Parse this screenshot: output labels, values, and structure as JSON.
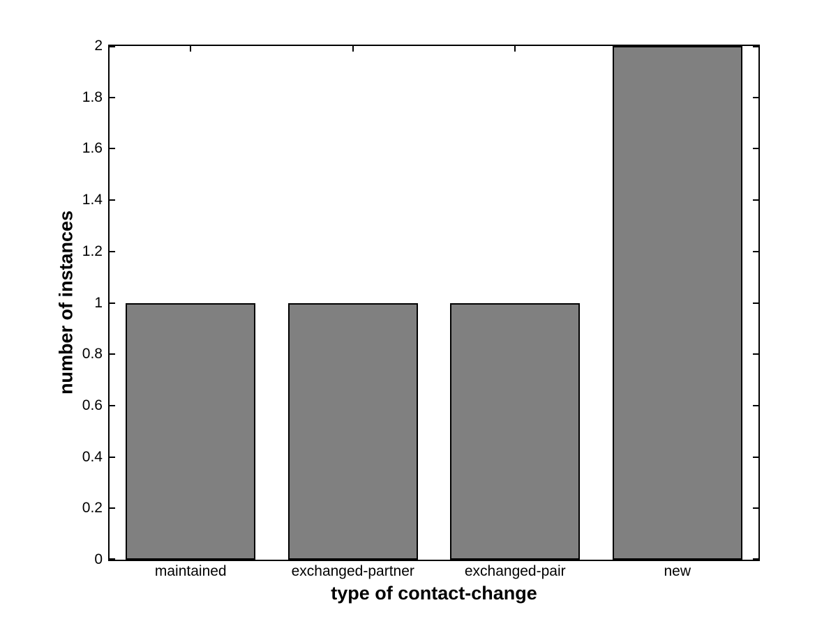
{
  "figure": {
    "background": "#ffffff",
    "axis_color": "#000000",
    "text_color": "#000000"
  },
  "chart_data": {
    "type": "bar",
    "title": "",
    "categories": [
      "maintained",
      "exchanged-partner",
      "exchanged-pair",
      "new"
    ],
    "values": [
      1,
      1,
      1,
      2
    ],
    "xlabel": "type of contact-change",
    "ylabel": "number of instances",
    "ylim": [
      0,
      2
    ],
    "yticks": [
      0,
      0.2,
      0.4,
      0.6,
      0.8,
      1,
      1.2,
      1.4,
      1.6,
      1.8,
      2
    ],
    "ytick_labels": [
      "0",
      "0.2",
      "0.4",
      "0.6",
      "0.8",
      "1",
      "1.2",
      "1.4",
      "1.6",
      "1.8",
      "2"
    ],
    "bar_color": "#808080",
    "bar_edge_color": "#000000",
    "bar_width_fraction": 0.8,
    "grid": false,
    "legend_position": "none",
    "box": true
  }
}
